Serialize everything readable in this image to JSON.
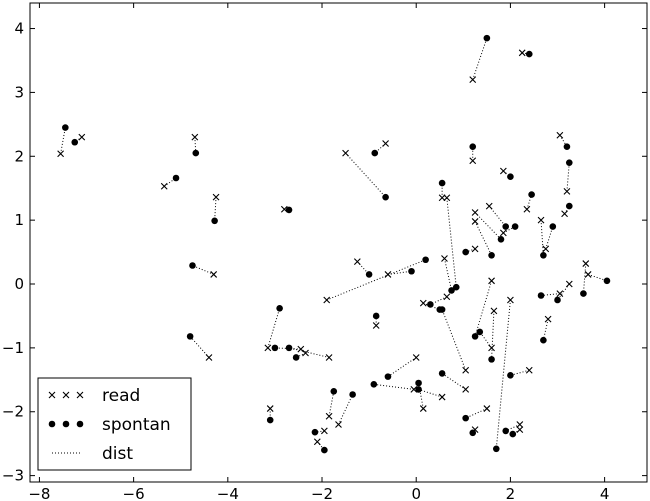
{
  "chart_data": {
    "type": "scatter",
    "title": "",
    "xlabel": "",
    "ylabel": "",
    "xlim": [
      -8.2,
      4.9
    ],
    "ylim": [
      -3.1,
      4.4
    ],
    "xticks": [
      -8,
      -6,
      -4,
      -2,
      0,
      2,
      4
    ],
    "yticks": [
      -3,
      -2,
      -1,
      0,
      1,
      2,
      3,
      4
    ],
    "xtick_labels": [
      "−8",
      "−6",
      "−4",
      "−2",
      "0",
      "2",
      "4"
    ],
    "ytick_labels": [
      "−3",
      "−2",
      "−1",
      "0",
      "1",
      "2",
      "3",
      "4"
    ],
    "grid": false,
    "legend_position": "lower-left",
    "legend": [
      {
        "label": "read",
        "marker": "x"
      },
      {
        "label": "spontan",
        "marker": "o"
      },
      {
        "label": "dist",
        "marker": "dotted"
      }
    ],
    "color": "#000000",
    "pairs": [
      {
        "read": [
          -7.55,
          2.04
        ],
        "spontan": [
          -7.45,
          2.45
        ]
      },
      {
        "read": [
          -7.1,
          2.3
        ],
        "spontan": [
          -7.25,
          2.22
        ]
      },
      {
        "read": [
          -5.35,
          1.53
        ],
        "spontan": [
          -5.1,
          1.66
        ]
      },
      {
        "read": [
          -4.7,
          2.3
        ],
        "spontan": [
          -4.68,
          2.05
        ]
      },
      {
        "read": [
          -4.25,
          1.36
        ],
        "spontan": [
          -4.28,
          0.99
        ]
      },
      {
        "read": [
          -4.3,
          0.15
        ],
        "spontan": [
          -4.75,
          0.29
        ]
      },
      {
        "read": [
          -4.4,
          -1.15
        ],
        "spontan": [
          -4.8,
          -0.82
        ]
      },
      {
        "read": [
          -2.8,
          1.17
        ],
        "spontan": [
          -2.7,
          1.16
        ]
      },
      {
        "read": [
          -0.65,
          2.2
        ],
        "spontan": [
          -0.88,
          2.05
        ]
      },
      {
        "read": [
          -1.5,
          2.05
        ],
        "spontan": [
          -0.65,
          1.36
        ]
      },
      {
        "read": [
          -1.25,
          0.35
        ],
        "spontan": [
          -1.0,
          0.15
        ]
      },
      {
        "read": [
          -3.15,
          -1.0
        ],
        "spontan": [
          -2.9,
          -0.38
        ]
      },
      {
        "read": [
          -2.45,
          -1.02
        ],
        "spontan": [
          -3.0,
          -1.0
        ]
      },
      {
        "read": [
          -2.35,
          -1.08
        ],
        "spontan": [
          -2.55,
          -1.15
        ]
      },
      {
        "read": [
          -1.85,
          -1.15
        ],
        "spontan": [
          -2.7,
          -1.0
        ]
      },
      {
        "read": [
          -3.1,
          -1.95
        ],
        "spontan": [
          -3.1,
          -2.13
        ]
      },
      {
        "read": [
          -1.85,
          -2.07
        ],
        "spontan": [
          -1.75,
          -1.68
        ]
      },
      {
        "read": [
          -1.65,
          -2.2
        ],
        "spontan": [
          -1.35,
          -1.73
        ]
      },
      {
        "read": [
          -1.95,
          -2.3
        ],
        "spontan": [
          -2.15,
          -2.32
        ]
      },
      {
        "read": [
          -2.1,
          -2.47
        ],
        "spontan": [
          -1.95,
          -2.6
        ]
      },
      {
        "read": [
          -0.85,
          -0.65
        ],
        "spontan": [
          -0.85,
          -0.5
        ]
      },
      {
        "read": [
          -0.6,
          0.15
        ],
        "spontan": [
          -0.1,
          0.2
        ]
      },
      {
        "read": [
          -1.9,
          -0.25
        ],
        "spontan": [
          0.2,
          0.38
        ]
      },
      {
        "read": [
          0.0,
          -1.15
        ],
        "spontan": [
          -0.6,
          -1.45
        ]
      },
      {
        "read": [
          -0.05,
          -1.65
        ],
        "spontan": [
          -0.9,
          -1.57
        ]
      },
      {
        "read": [
          0.15,
          -1.95
        ],
        "spontan": [
          0.05,
          -1.55
        ]
      },
      {
        "read": [
          0.55,
          -1.77
        ],
        "spontan": [
          0.05,
          -1.65
        ]
      },
      {
        "read": [
          0.15,
          -0.3
        ],
        "spontan": [
          0.5,
          -0.4
        ]
      },
      {
        "read": [
          0.6,
          0.4
        ],
        "spontan": [
          0.75,
          -0.1
        ]
      },
      {
        "read": [
          0.65,
          -0.2
        ],
        "spontan": [
          0.3,
          -0.32
        ]
      },
      {
        "read": [
          1.05,
          -1.35
        ],
        "spontan": [
          0.55,
          -0.4
        ]
      },
      {
        "read": [
          1.05,
          -1.65
        ],
        "spontan": [
          0.55,
          -1.4
        ]
      },
      {
        "read": [
          0.55,
          1.35
        ],
        "spontan": [
          0.55,
          1.58
        ]
      },
      {
        "read": [
          0.65,
          1.35
        ],
        "spontan": [
          0.85,
          -0.05
        ]
      },
      {
        "read": [
          1.25,
          0.55
        ],
        "spontan": [
          1.05,
          0.5
        ]
      },
      {
        "read": [
          1.2,
          3.2
        ],
        "spontan": [
          1.5,
          3.85
        ]
      },
      {
        "read": [
          1.2,
          1.93
        ],
        "spontan": [
          1.2,
          2.15
        ]
      },
      {
        "read": [
          1.25,
          0.98
        ],
        "spontan": [
          1.6,
          0.45
        ]
      },
      {
        "read": [
          1.25,
          1.12
        ],
        "spontan": [
          1.8,
          0.7
        ]
      },
      {
        "read": [
          1.6,
          0.05
        ],
        "spontan": [
          1.25,
          -0.82
        ]
      },
      {
        "read": [
          1.55,
          1.22
        ],
        "spontan": [
          1.9,
          0.9
        ]
      },
      {
        "read": [
          1.6,
          -1.0
        ],
        "spontan": [
          1.35,
          -0.75
        ]
      },
      {
        "read": [
          1.65,
          -0.42
        ],
        "spontan": [
          1.6,
          -1.18
        ]
      },
      {
        "read": [
          2.0,
          -0.25
        ],
        "spontan": [
          1.7,
          -2.58
        ]
      },
      {
        "read": [
          1.5,
          -1.95
        ],
        "spontan": [
          1.05,
          -2.1
        ]
      },
      {
        "read": [
          1.25,
          -2.28
        ],
        "spontan": [
          1.2,
          -2.33
        ]
      },
      {
        "read": [
          2.2,
          -2.2
        ],
        "spontan": [
          1.9,
          -2.3
        ]
      },
      {
        "read": [
          2.2,
          -2.28
        ],
        "spontan": [
          2.05,
          -2.35
        ]
      },
      {
        "read": [
          2.4,
          -1.35
        ],
        "spontan": [
          2.0,
          -1.43
        ]
      },
      {
        "read": [
          1.85,
          1.77
        ],
        "spontan": [
          2.0,
          1.68
        ]
      },
      {
        "read": [
          1.85,
          0.8
        ],
        "spontan": [
          2.1,
          0.9
        ]
      },
      {
        "read": [
          2.35,
          1.17
        ],
        "spontan": [
          2.45,
          1.4
        ]
      },
      {
        "read": [
          2.25,
          3.62
        ],
        "spontan": [
          2.4,
          3.6
        ]
      },
      {
        "read": [
          2.65,
          1.0
        ],
        "spontan": [
          2.7,
          0.45
        ]
      },
      {
        "read": [
          2.75,
          0.55
        ],
        "spontan": [
          2.9,
          0.9
        ]
      },
      {
        "read": [
          2.8,
          -0.55
        ],
        "spontan": [
          2.7,
          -0.88
        ]
      },
      {
        "read": [
          3.05,
          2.33
        ],
        "spontan": [
          3.2,
          2.15
        ]
      },
      {
        "read": [
          3.2,
          1.45
        ],
        "spontan": [
          3.25,
          1.9
        ]
      },
      {
        "read": [
          3.15,
          1.1
        ],
        "spontan": [
          3.25,
          1.22
        ]
      },
      {
        "read": [
          3.05,
          -0.15
        ],
        "spontan": [
          2.65,
          -0.18
        ]
      },
      {
        "read": [
          3.25,
          0.0
        ],
        "spontan": [
          3.0,
          -0.25
        ]
      },
      {
        "read": [
          3.6,
          0.32
        ],
        "spontan": [
          3.55,
          -0.15
        ]
      },
      {
        "read": [
          3.65,
          0.15
        ],
        "spontan": [
          4.05,
          0.05
        ]
      }
    ]
  }
}
